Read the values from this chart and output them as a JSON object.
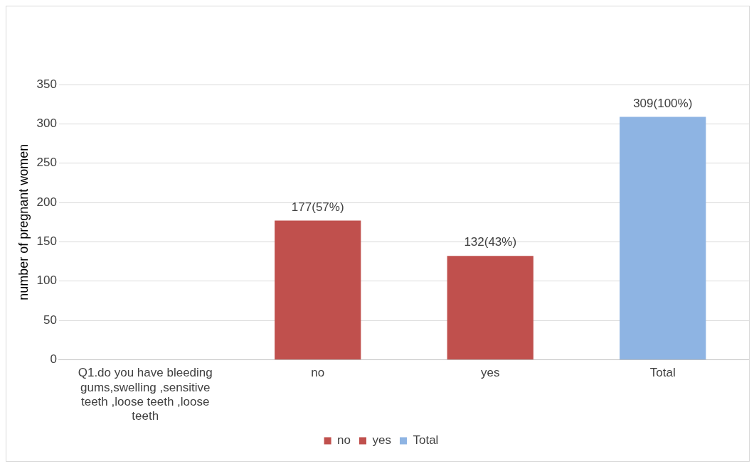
{
  "chart_data": {
    "type": "bar",
    "categories": [
      "Q1.do you have bleeding gums,swelling ,sensitive teeth ,loose teeth ,loose teeth",
      "no",
      "yes",
      "Total"
    ],
    "series": [
      {
        "name": "no",
        "color": "#c0504d",
        "values": [
          null,
          177,
          null,
          null
        ],
        "value_labels": [
          null,
          "177(57%)",
          null,
          null
        ]
      },
      {
        "name": "yes",
        "color": "#c0504d",
        "values": [
          null,
          null,
          132,
          null
        ],
        "value_labels": [
          null,
          null,
          "132(43%)",
          null
        ]
      },
      {
        "name": "Total",
        "color": "#8eb4e3",
        "values": [
          null,
          null,
          null,
          309
        ],
        "value_labels": [
          null,
          null,
          null,
          "309(100%)"
        ]
      }
    ],
    "ylabel": "number of pregnant women",
    "ylim": [
      0,
      350
    ],
    "yticks": [
      0,
      50,
      100,
      150,
      200,
      250,
      300,
      350
    ],
    "grid": "y",
    "legend": "bottom"
  }
}
